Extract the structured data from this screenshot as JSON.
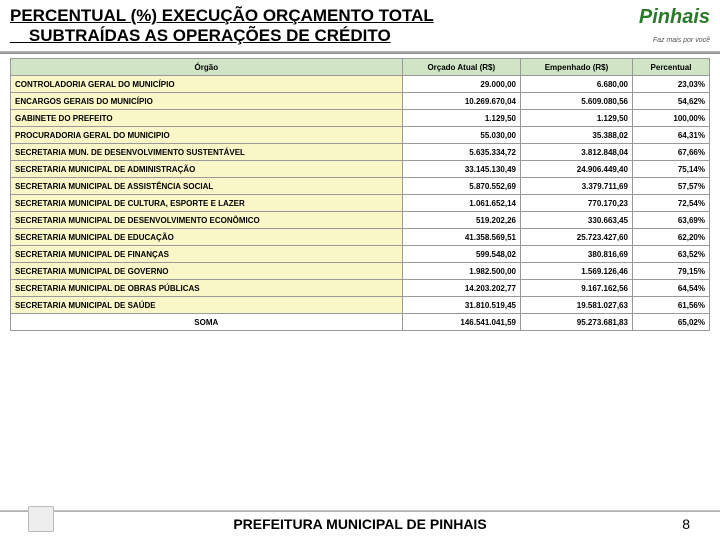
{
  "title_line1": "PERCENTUAL (%) EXECUÇÃO ORÇAMENTO TOTAL",
  "title_line2": "SUBTRAÍDAS AS OPERAÇÕES DE CRÉDITO",
  "logo_name": "Pinhais",
  "logo_tagline": "Faz mais por você",
  "columns": [
    "Órgão",
    "Orçado Atual (R$)",
    "Empenhado (R$)",
    "Percentual"
  ],
  "rows": [
    {
      "orgao": "CONTROLADORIA GERAL DO MUNICÍPIO",
      "orcado": "29.000,00",
      "emp": "6.680,00",
      "pct": "23,03%"
    },
    {
      "orgao": "ENCARGOS GERAIS DO MUNICÍPIO",
      "orcado": "10.269.670,04",
      "emp": "5.609.080,56",
      "pct": "54,62%"
    },
    {
      "orgao": "GABINETE DO PREFEITO",
      "orcado": "1.129,50",
      "emp": "1.129,50",
      "pct": "100,00%"
    },
    {
      "orgao": "PROCURADORIA GERAL DO MUNICIPIO",
      "orcado": "55.030,00",
      "emp": "35.388,02",
      "pct": "64,31%"
    },
    {
      "orgao": "SECRETARIA MUN. DE DESENVOLVIMENTO SUSTENTÁVEL",
      "orcado": "5.635.334,72",
      "emp": "3.812.848,04",
      "pct": "67,66%"
    },
    {
      "orgao": "SECRETARIA MUNICIPAL DE ADMINISTRAÇÃO",
      "orcado": "33.145.130,49",
      "emp": "24.906.449,40",
      "pct": "75,14%"
    },
    {
      "orgao": "SECRETARIA MUNICIPAL DE ASSISTÊNCIA SOCIAL",
      "orcado": "5.870.552,69",
      "emp": "3.379.711,69",
      "pct": "57,57%"
    },
    {
      "orgao": "SECRETARIA MUNICIPAL DE CULTURA, ESPORTE E LAZER",
      "orcado": "1.061.652,14",
      "emp": "770.170,23",
      "pct": "72,54%"
    },
    {
      "orgao": "SECRETARIA MUNICIPAL DE DESENVOLVIMENTO ECONÔMICO",
      "orcado": "519.202,26",
      "emp": "330.663,45",
      "pct": "63,69%"
    },
    {
      "orgao": "SECRETARIA MUNICIPAL DE EDUCAÇÃO",
      "orcado": "41.358.569,51",
      "emp": "25.723.427,60",
      "pct": "62,20%"
    },
    {
      "orgao": "SECRETARIA MUNICIPAL DE FINANÇAS",
      "orcado": "599.548,02",
      "emp": "380.816,69",
      "pct": "63,52%"
    },
    {
      "orgao": "SECRETARIA MUNICIPAL DE GOVERNO",
      "orcado": "1.982.500,00",
      "emp": "1.569.126,46",
      "pct": "79,15%"
    },
    {
      "orgao": "SECRETARIA MUNICIPAL DE OBRAS PÚBLICAS",
      "orcado": "14.203.202,77",
      "emp": "9.167.162,56",
      "pct": "64,54%"
    },
    {
      "orgao": "SECRETARIA MUNICIPAL DE SAÚDE",
      "orcado": "31.810.519,45",
      "emp": "19.581.027,63",
      "pct": "61,56%"
    }
  ],
  "soma": {
    "label": "SOMA",
    "orcado": "146.541.041,59",
    "emp": "95.273.681,83",
    "pct": "65,02%"
  },
  "footer": "PREFEITURA MUNICIPAL DE  PINHAIS",
  "page": "8",
  "colors": {
    "header_bg": "#cfe5c5",
    "row_bg": "#f9f6c8",
    "border": "#999999"
  }
}
